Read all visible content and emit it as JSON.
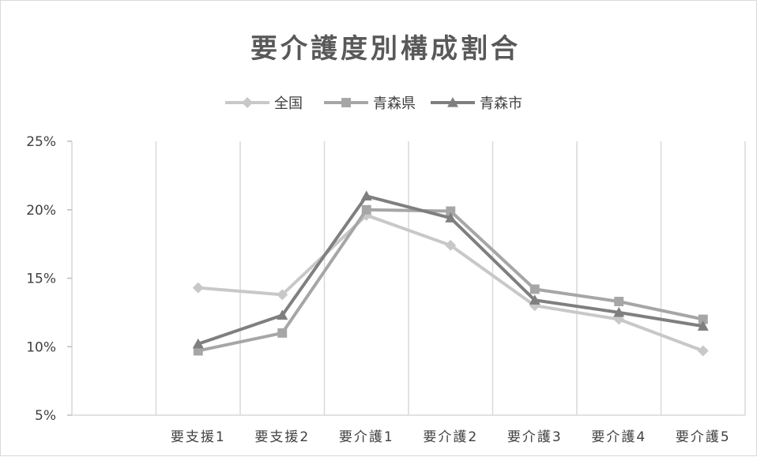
{
  "chart_data": {
    "type": "line",
    "title": "要介護度別構成割合",
    "categories": [
      "要支援1",
      "要支援2",
      "要介護1",
      "要介護2",
      "要介護3",
      "要介護4",
      "要介護5"
    ],
    "series": [
      {
        "name": "全国",
        "color": "#c8c8c8",
        "marker": "diamond",
        "values": [
          14.3,
          13.8,
          19.6,
          17.4,
          13.0,
          12.0,
          9.7
        ]
      },
      {
        "name": "青森県",
        "color": "#a6a6a6",
        "marker": "square",
        "values": [
          9.7,
          11.0,
          20.0,
          19.9,
          14.2,
          13.3,
          12.0
        ]
      },
      {
        "name": "青森市",
        "color": "#7f7f7f",
        "marker": "triangle",
        "values": [
          10.2,
          12.3,
          21.0,
          19.4,
          13.4,
          12.5,
          11.5
        ]
      }
    ],
    "ylim": [
      5,
      25
    ],
    "yticks": [
      5,
      10,
      15,
      20,
      25
    ],
    "ytick_labels": [
      "5%",
      "10%",
      "15%",
      "20%",
      "25%"
    ],
    "legend_position": "top-center",
    "grid": {
      "vertical": true,
      "horizontal": false
    }
  }
}
